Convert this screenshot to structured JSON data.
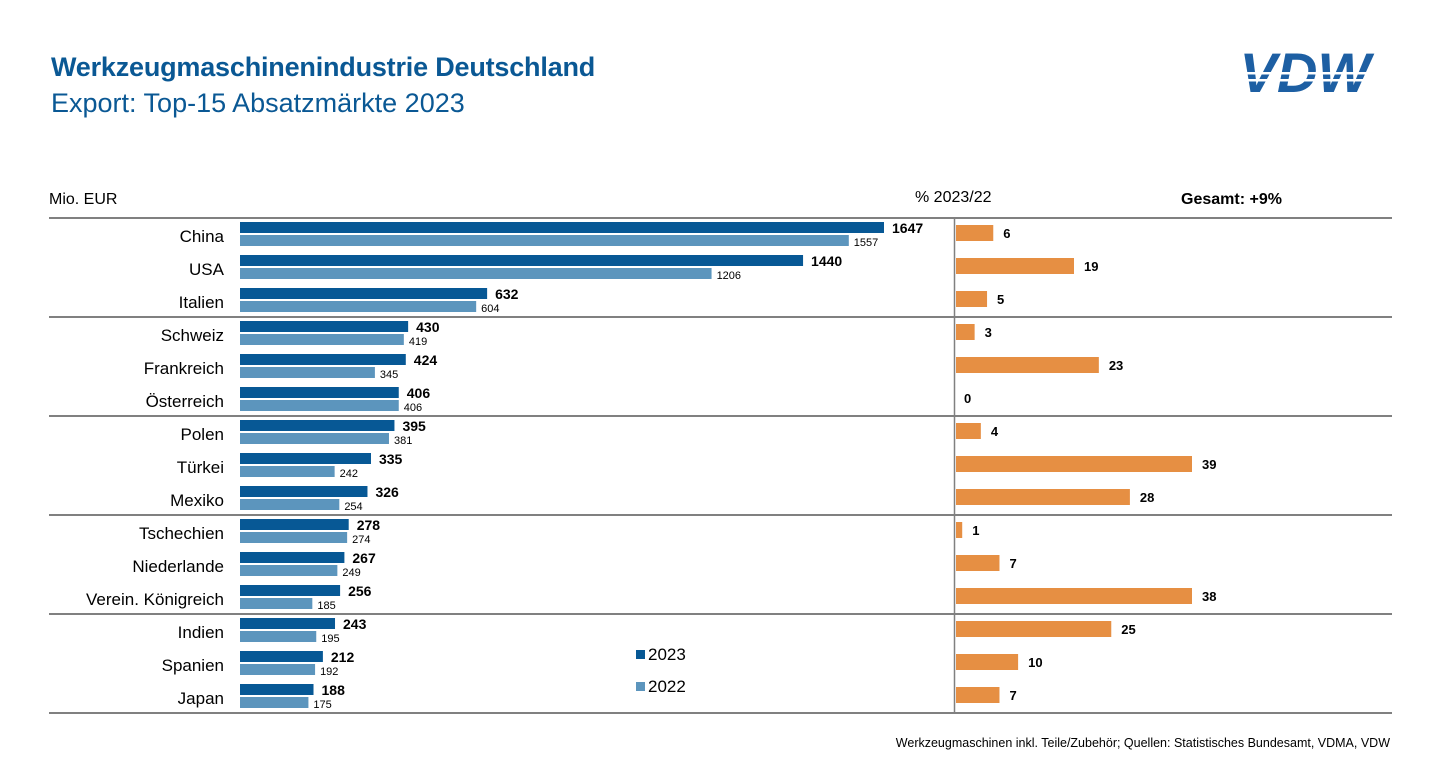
{
  "header": {
    "title": "Werkzeugmaschinenindustrie Deutschland",
    "subtitle": "Export: Top-15 Absatzmärkte 2023",
    "logo_text": "VDW"
  },
  "footer": {
    "note": "Werkzeugmaschinen inkl. Teile/Zubehör;  Quellen: Statistisches Bundesamt, VDMA, VDW"
  },
  "colors": {
    "brand_blue": "#0a5894",
    "bar_2023": "#075895",
    "bar_2022": "#5c95bd",
    "bar_change": "#e68f43",
    "grid_line": "#808080"
  },
  "chart_data": [
    {
      "type": "bar",
      "orientation": "horizontal",
      "title": "Export: Top-15 Absatzmärkte 2023",
      "unit_label": "Mio. EUR",
      "categories": [
        "China",
        "USA",
        "Italien",
        "Schweiz",
        "Frankreich",
        "Österreich",
        "Polen",
        "Türkei",
        "Mexiko",
        "Tschechien",
        "Niederlande",
        "Verein. Königreich",
        "Indien",
        "Spanien",
        "Japan"
      ],
      "series": [
        {
          "name": "2023",
          "values": [
            1647,
            1440,
            632,
            430,
            424,
            406,
            395,
            335,
            326,
            278,
            267,
            256,
            243,
            212,
            188
          ]
        },
        {
          "name": "2022",
          "values": [
            1557,
            1206,
            604,
            419,
            345,
            406,
            381,
            242,
            254,
            274,
            249,
            185,
            195,
            192,
            175
          ]
        }
      ],
      "group_size": 3,
      "xlim": [
        0,
        1647
      ],
      "legend": {
        "entries": [
          "2023",
          "2022"
        ],
        "position": "bottom-right of left panel"
      },
      "grid": false
    },
    {
      "type": "bar",
      "orientation": "horizontal",
      "title": "% 2023/22",
      "annotation": "Gesamt: +9%",
      "categories": [
        "China",
        "USA",
        "Italien",
        "Schweiz",
        "Frankreich",
        "Österreich",
        "Polen",
        "Türkei",
        "Mexiko",
        "Tschechien",
        "Niederlande",
        "Verein. Königreich",
        "Indien",
        "Spanien",
        "Japan"
      ],
      "values": [
        6,
        19,
        5,
        3,
        23,
        0,
        4,
        39,
        28,
        1,
        7,
        38,
        25,
        10,
        7
      ],
      "xlim": [
        0,
        38
      ],
      "grid": false
    }
  ]
}
